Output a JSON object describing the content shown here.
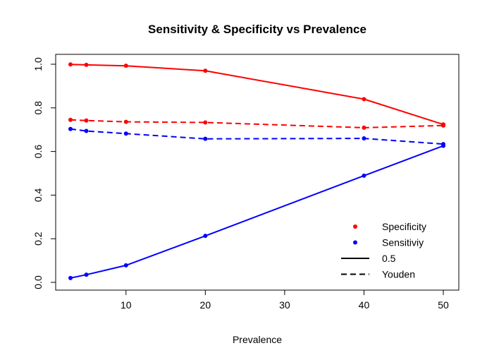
{
  "chart_data": {
    "type": "line",
    "title": "Sensitivity & Specificity vs Prevalence",
    "xlabel": "Prevalence",
    "ylabel": "",
    "xlim": [
      3,
      50
    ],
    "ylim": [
      0,
      1
    ],
    "x_ticks": [
      10,
      20,
      30,
      40,
      50
    ],
    "y_ticks": [
      0.0,
      0.2,
      0.4,
      0.6,
      0.8,
      1.0
    ],
    "y_tick_labels": [
      "0.0",
      "0.2",
      "0.4",
      "0.6",
      "0.8",
      "1.0"
    ],
    "grid": false,
    "legend_position": "bottom-right",
    "x": [
      3,
      5,
      10,
      20,
      40,
      50
    ],
    "series": [
      {
        "name": "Specificity",
        "threshold": "0.5",
        "color": "#ff0000",
        "linestyle": "solid",
        "values": [
          0.999,
          0.997,
          0.993,
          0.97,
          0.84,
          0.724
        ]
      },
      {
        "name": "Specificity",
        "threshold": "Youden",
        "color": "#ff0000",
        "linestyle": "dashed",
        "values": [
          0.745,
          0.742,
          0.736,
          0.733,
          0.709,
          0.719
        ]
      },
      {
        "name": "Sensitiviy",
        "threshold": "Youden",
        "color": "#0000ff",
        "linestyle": "dashed",
        "values": [
          0.703,
          0.694,
          0.682,
          0.658,
          0.66,
          0.634
        ]
      },
      {
        "name": "Sensitiviy",
        "threshold": "0.5",
        "color": "#0000ff",
        "linestyle": "solid",
        "values": [
          0.02,
          0.035,
          0.078,
          0.213,
          0.489,
          0.626
        ]
      }
    ],
    "legend": [
      {
        "label": "Specificity",
        "kind": "point",
        "color": "#ff0000"
      },
      {
        "label": "Sensitiviy",
        "kind": "point",
        "color": "#0000ff"
      },
      {
        "label": "0.5",
        "kind": "line",
        "linestyle": "solid",
        "color": "#000000"
      },
      {
        "label": "Youden",
        "kind": "line",
        "linestyle": "dashed",
        "color": "#000000"
      }
    ]
  }
}
